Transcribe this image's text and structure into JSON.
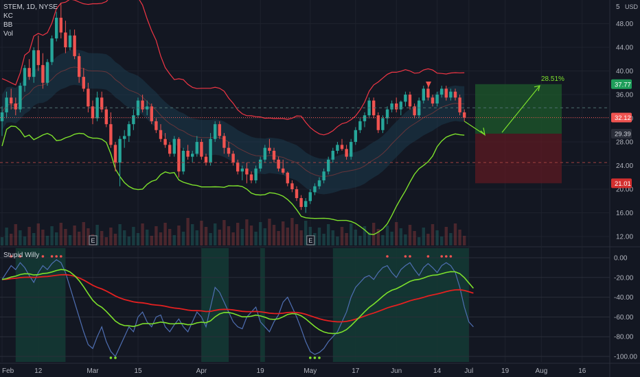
{
  "header": {
    "symbol_line": "STEM, 1D, NYSE",
    "indicators": [
      "KC",
      "BB",
      "Vol"
    ]
  },
  "oscillator": {
    "name": "Stupid Willy"
  },
  "colors": {
    "background": "#131722",
    "up_candle": "#26a69a",
    "down_candle": "#ef5350",
    "bb_upper": "#f23645",
    "bb_lower": "#7ee22c",
    "kc_fill": "#1c3a4d",
    "profit_zone": "#1e5a2b",
    "loss_zone": "#5c1a22",
    "osc_signal_red": "#e52020",
    "osc_signal_green": "#7ee22c",
    "osc_line": "#4f6fb3",
    "osc_highlight": "#143b35"
  },
  "chart_data": [
    {
      "type": "candlestick",
      "title": "STEM, 1D, NYSE",
      "currency_label": "USD",
      "ylim": [
        10.5,
        52
      ],
      "y_ticks": [
        "48.00",
        "44.00",
        "40.00",
        "36.00",
        "32.00",
        "28.00",
        "24.00",
        "20.00",
        "16.00",
        "12.00"
      ],
      "y_top_partial_label": "5",
      "x_ticks": [
        "Feb",
        "12",
        "Mar",
        "15",
        "Apr",
        "19",
        "May",
        "17",
        "Jun",
        "14",
        "Jul",
        "19",
        "Aug",
        "16"
      ],
      "price_labels": {
        "target": "37.77",
        "current": "32.12",
        "entry": "29.39",
        "stop": "21.01"
      },
      "annotation": "28.51%",
      "earnings_markers": [
        "E",
        "E"
      ],
      "series": [
        {
          "name": "STEM",
          "values": [
            [
              31.5,
              34.0,
              29.0,
              33.0
            ],
            [
              33.0,
              36.5,
              32.0,
              35.5
            ],
            [
              35.5,
              37.0,
              33.5,
              34.5
            ],
            [
              34.5,
              35.5,
              32.5,
              33.5
            ],
            [
              33.5,
              38.0,
              33.0,
              37.5
            ],
            [
              37.5,
              41.0,
              36.5,
              40.5
            ],
            [
              40.5,
              42.0,
              38.5,
              39.0
            ],
            [
              39.0,
              44.0,
              38.0,
              43.5
            ],
            [
              43.5,
              46.0,
              40.0,
              41.0
            ],
            [
              41.0,
              43.0,
              37.0,
              38.0
            ],
            [
              38.0,
              42.0,
              37.5,
              41.5
            ],
            [
              41.5,
              46.0,
              41.0,
              45.5
            ],
            [
              45.5,
              50.0,
              45.0,
              49.0
            ],
            [
              49.0,
              51.5,
              45.5,
              46.5
            ],
            [
              46.5,
              48.5,
              43.0,
              44.0
            ],
            [
              44.0,
              47.0,
              43.5,
              46.0
            ],
            [
              46.0,
              47.0,
              42.0,
              42.5
            ],
            [
              42.5,
              43.0,
              38.0,
              39.0
            ],
            [
              39.0,
              40.5,
              36.5,
              37.0
            ],
            [
              37.0,
              38.0,
              33.0,
              34.0
            ],
            [
              34.0,
              35.0,
              31.0,
              32.0
            ],
            [
              32.0,
              36.5,
              31.5,
              35.5
            ],
            [
              35.5,
              36.5,
              33.0,
              33.5
            ],
            [
              33.5,
              34.0,
              30.5,
              31.0
            ],
            [
              31.0,
              33.0,
              27.0,
              27.5
            ],
            [
              27.5,
              28.0,
              23.0,
              24.5
            ],
            [
              24.5,
              29.0,
              20.5,
              28.5
            ],
            [
              28.5,
              30.0,
              27.0,
              29.0
            ],
            [
              29.0,
              31.5,
              28.0,
              31.0
            ],
            [
              31.0,
              33.5,
              30.0,
              32.5
            ],
            [
              32.5,
              35.5,
              32.0,
              35.0
            ],
            [
              35.0,
              36.0,
              33.0,
              33.5
            ],
            [
              33.5,
              35.0,
              32.5,
              34.0
            ],
            [
              34.0,
              34.5,
              31.0,
              31.5
            ],
            [
              31.5,
              32.0,
              29.5,
              30.0
            ],
            [
              30.0,
              31.0,
              28.0,
              28.5
            ],
            [
              28.5,
              29.5,
              27.0,
              27.5
            ],
            [
              27.5,
              28.0,
              25.5,
              26.0
            ],
            [
              26.0,
              29.0,
              25.5,
              28.5
            ],
            [
              28.5,
              28.8,
              22.0,
              23.0
            ],
            [
              23.0,
              27.0,
              22.5,
              26.5
            ],
            [
              26.5,
              27.5,
              25.0,
              25.5
            ],
            [
              25.5,
              26.5,
              24.5,
              26.0
            ],
            [
              26.0,
              29.0,
              25.5,
              28.0
            ],
            [
              28.0,
              28.5,
              25.0,
              25.5
            ],
            [
              25.5,
              26.0,
              24.0,
              24.5
            ],
            [
              24.5,
              29.5,
              24.0,
              28.5
            ],
            [
              28.5,
              31.5,
              28.0,
              31.0
            ],
            [
              31.0,
              31.5,
              28.5,
              29.0
            ],
            [
              29.0,
              29.5,
              26.0,
              27.0
            ],
            [
              27.0,
              28.0,
              25.5,
              26.0
            ],
            [
              26.0,
              26.5,
              24.0,
              24.5
            ],
            [
              24.5,
              25.0,
              22.5,
              23.0
            ],
            [
              23.0,
              24.0,
              21.5,
              23.5
            ],
            [
              23.5,
              24.5,
              21.0,
              22.5
            ],
            [
              22.5,
              23.0,
              21.0,
              21.5
            ],
            [
              21.5,
              24.0,
              21.0,
              23.5
            ],
            [
              23.5,
              25.5,
              23.0,
              25.0
            ],
            [
              25.0,
              27.5,
              24.5,
              27.0
            ],
            [
              27.0,
              28.5,
              26.0,
              26.5
            ],
            [
              26.5,
              27.0,
              24.5,
              25.0
            ],
            [
              25.0,
              25.5,
              23.0,
              23.5
            ],
            [
              23.5,
              25.0,
              22.5,
              22.8
            ],
            [
              22.8,
              23.0,
              20.5,
              21.0
            ],
            [
              21.0,
              21.5,
              19.5,
              20.0
            ],
            [
              20.0,
              20.5,
              18.0,
              18.5
            ],
            [
              18.5,
              19.0,
              16.5,
              17.0
            ],
            [
              17.0,
              18.5,
              16.0,
              18.0
            ],
            [
              18.0,
              20.0,
              17.5,
              19.5
            ],
            [
              19.5,
              21.0,
              19.0,
              20.5
            ],
            [
              20.5,
              22.0,
              20.0,
              21.5
            ],
            [
              21.5,
              23.5,
              21.0,
              23.0
            ],
            [
              23.0,
              25.5,
              22.5,
              25.0
            ],
            [
              25.0,
              27.0,
              24.5,
              26.5
            ],
            [
              26.5,
              28.0,
              26.0,
              27.5
            ],
            [
              27.5,
              28.5,
              26.5,
              26.8
            ],
            [
              26.8,
              27.5,
              25.0,
              25.5
            ],
            [
              25.5,
              28.5,
              25.0,
              28.0
            ],
            [
              28.0,
              30.5,
              27.5,
              30.0
            ],
            [
              30.0,
              32.0,
              29.5,
              31.5
            ],
            [
              31.5,
              33.0,
              30.5,
              32.5
            ],
            [
              32.5,
              35.5,
              32.0,
              35.0
            ],
            [
              35.0,
              35.5,
              32.0,
              32.5
            ],
            [
              32.5,
              33.0,
              29.5,
              30.0
            ],
            [
              30.0,
              32.5,
              29.5,
              32.0
            ],
            [
              32.0,
              34.0,
              31.0,
              33.5
            ],
            [
              33.5,
              35.0,
              33.0,
              34.5
            ],
            [
              34.5,
              35.5,
              33.0,
              33.5
            ],
            [
              33.5,
              35.0,
              32.5,
              34.8
            ],
            [
              34.8,
              36.5,
              34.0,
              36.0
            ],
            [
              36.0,
              36.5,
              33.5,
              34.0
            ],
            [
              34.0,
              34.5,
              32.0,
              32.5
            ],
            [
              32.5,
              35.5,
              32.0,
              35.0
            ],
            [
              35.0,
              37.5,
              34.5,
              37.0
            ],
            [
              37.0,
              38.0,
              35.0,
              35.5
            ],
            [
              35.5,
              36.0,
              34.0,
              34.5
            ],
            [
              34.5,
              36.5,
              34.0,
              36.0
            ],
            [
              36.0,
              37.5,
              35.5,
              37.0
            ],
            [
              37.0,
              37.5,
              35.0,
              35.5
            ],
            [
              35.5,
              37.0,
              35.0,
              36.5
            ],
            [
              36.5,
              37.0,
              35.0,
              35.5
            ],
            [
              35.5,
              36.0,
              32.5,
              33.0
            ],
            [
              33.0,
              33.5,
              31.5,
              32.12
            ]
          ]
        }
      ],
      "ohlc_order": [
        "open",
        "high",
        "low",
        "close"
      ],
      "position": {
        "entry": 29.39,
        "target": 37.77,
        "stop": 21.01,
        "gain_pct": "28.51%"
      }
    },
    {
      "type": "line",
      "title": "Stupid Willy",
      "ylim": [
        -100,
        0
      ],
      "y_ticks": [
        "0.00",
        "-20.00",
        "-40.00",
        "-60.00",
        "-80.00",
        "-100.00"
      ],
      "series": [
        {
          "name": "Stupid Willy",
          "values": [
            -22,
            -15,
            -8,
            -12,
            -5,
            -10,
            -18,
            -25,
            -15,
            -8,
            -12,
            -6,
            -2,
            -5,
            -15,
            -30,
            -45,
            -60,
            -75,
            -88,
            -92,
            -80,
            -70,
            -85,
            -95,
            -100,
            -90,
            -80,
            -70,
            -75,
            -60,
            -55,
            -65,
            -70,
            -60,
            -58,
            -70,
            -75,
            -68,
            -62,
            -70,
            -75,
            -65,
            -55,
            -60,
            -70,
            -50,
            -30,
            -35,
            -45,
            -55,
            -65,
            -70,
            -72,
            -60,
            -55,
            -50,
            -65,
            -70,
            -75,
            -65,
            -58,
            -45,
            -40,
            -50,
            -60,
            -72,
            -85,
            -95,
            -98,
            -96,
            -92,
            -85,
            -80,
            -75,
            -65,
            -55,
            -40,
            -30,
            -25,
            -20,
            -18,
            -22,
            -15,
            -10,
            -8,
            -15,
            -20,
            -12,
            -8,
            -5,
            -12,
            -18,
            -10,
            -6,
            -10,
            -15,
            -8,
            -5,
            -8,
            -15,
            -30,
            -50,
            -65,
            -70
          ]
        }
      ]
    }
  ]
}
